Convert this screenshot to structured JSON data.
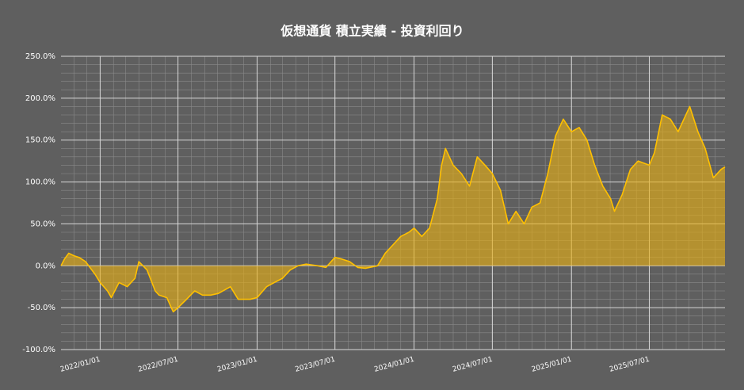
{
  "chart_data": {
    "type": "area-line",
    "title": "仮想通貨 積立実績 - 投資利回り",
    "color": "#ffc000",
    "fill_color": "rgba(232,176,20,0.62)",
    "grid": true,
    "minor_grid": true,
    "x": [
      "2021/10/02",
      "2021/10/10",
      "2021/10/20",
      "2021/11/01",
      "2021/11/13",
      "2021/11/28",
      "2021/12/20",
      "2022/01/01",
      "2022/01/18",
      "2022/01/27",
      "2022/02/14",
      "2022/03/05",
      "2022/03/23",
      "2022/04/01",
      "2022/04/20",
      "2022/05/09",
      "2022/05/18",
      "2022/06/05",
      "2022/06/20",
      "2022/07/01",
      "2022/07/21",
      "2022/08/09",
      "2022/08/27",
      "2022/09/15",
      "2022/10/03",
      "2022/10/31",
      "2022/11/18",
      "2022/12/16",
      "2023/01/01",
      "2023/01/23",
      "2023/02/10",
      "2023/03/01",
      "2023/03/19",
      "2023/04/06",
      "2023/04/25",
      "2023/05/22",
      "2023/06/10",
      "2023/07/01",
      "2023/07/17",
      "2023/08/04",
      "2023/08/23",
      "2023/09/10",
      "2023/10/08",
      "2023/10/26",
      "2023/11/13",
      "2023/12/01",
      "2023/12/20",
      "2024/01/01",
      "2024/01/19",
      "2024/02/06",
      "2024/02/24",
      "2024/03/05",
      "2024/03/14",
      "2024/04/01",
      "2024/04/20",
      "2024/05/09",
      "2024/05/27",
      "2024/06/14",
      "2024/07/01",
      "2024/07/20",
      "2024/08/07",
      "2024/08/25",
      "2024/09/13",
      "2024/10/01",
      "2024/10/20",
      "2024/11/07",
      "2024/11/25",
      "2024/12/13",
      "2025/01/01",
      "2025/01/19",
      "2025/02/06",
      "2025/02/24",
      "2025/03/15",
      "2025/04/02",
      "2025/04/11",
      "2025/04/29",
      "2025/05/18",
      "2025/06/05",
      "2025/07/01",
      "2025/07/13",
      "2025/07/31",
      "2025/08/19",
      "2025/09/06",
      "2025/10/03",
      "2025/10/22",
      "2025/11/08",
      "2025/11/27",
      "2025/12/15",
      "2025/12/24"
    ],
    "values": [
      0,
      8,
      15,
      12,
      10,
      5,
      -10,
      -20,
      -30,
      -38,
      -20,
      -25,
      -15,
      5,
      -5,
      -30,
      -35,
      -38,
      -55,
      -50,
      -40,
      -30,
      -35,
      -35,
      -33,
      -25,
      -40,
      -40,
      -38,
      -25,
      -20,
      -15,
      -5,
      0,
      2,
      0,
      -2,
      10,
      8,
      5,
      -2,
      -3,
      0,
      15,
      25,
      35,
      40,
      45,
      35,
      45,
      80,
      120,
      140,
      120,
      110,
      95,
      130,
      120,
      110,
      90,
      50,
      65,
      50,
      70,
      75,
      110,
      155,
      175,
      160,
      165,
      150,
      120,
      95,
      80,
      65,
      85,
      115,
      125,
      120,
      135,
      180,
      175,
      160,
      190,
      160,
      140,
      105,
      115,
      118
    ],
    "xlim": [
      "2021/10/02",
      "2025/12/24"
    ],
    "xticks": [
      "2022/01/01",
      "2022/07/01",
      "2023/01/01",
      "2023/07/01",
      "2024/01/01",
      "2024/07/01",
      "2025/01/01",
      "2025/07/01"
    ],
    "ylim": [
      -100,
      250
    ],
    "yticks": [
      {
        "value": -100,
        "label": "-100.0%"
      },
      {
        "value": -50,
        "label": "-50.0%"
      },
      {
        "value": 0,
        "label": "0.0%"
      },
      {
        "value": 50,
        "label": "50.0%"
      },
      {
        "value": 100,
        "label": "100.0%"
      },
      {
        "value": 150,
        "label": "150.0%"
      },
      {
        "value": 200,
        "label": "200.0%"
      },
      {
        "value": 250,
        "label": "250.0%"
      }
    ]
  }
}
